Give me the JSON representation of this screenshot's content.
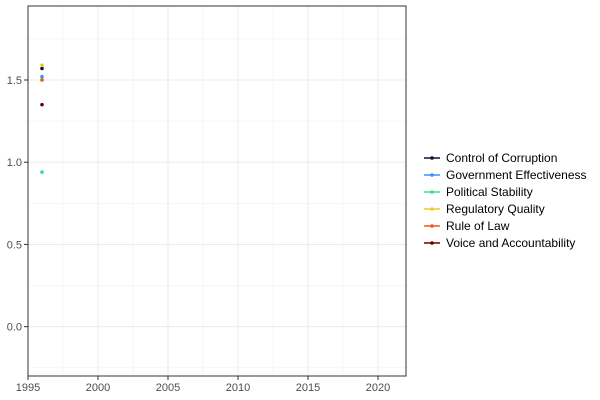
{
  "chart_data": {
    "type": "scatter",
    "title": "",
    "xlabel": "",
    "ylabel": "",
    "xlim": [
      1995,
      2022
    ],
    "ylim": [
      -0.3,
      1.95
    ],
    "x_ticks": [
      1995,
      2000,
      2005,
      2010,
      2015,
      2020
    ],
    "x_tick_labels": [
      "1995",
      "2000",
      "2005",
      "2010",
      "2015",
      "2020"
    ],
    "y_ticks": [
      0.0,
      0.5,
      1.0,
      1.5
    ],
    "y_tick_labels": [
      "0.0",
      "0.5",
      "1.0",
      "1.5"
    ],
    "grid": true,
    "legend_position": "right",
    "series": [
      {
        "name": "Control of Corruption",
        "color": "#1a0a2e",
        "points": [
          {
            "x": 1996,
            "y": 1.57
          }
        ]
      },
      {
        "name": "Government Effectiveness",
        "color": "#3b8fff",
        "points": [
          {
            "x": 1996,
            "y": 1.52
          }
        ]
      },
      {
        "name": "Political Stability",
        "color": "#33e38a",
        "points": [
          {
            "x": 1996,
            "y": 0.94
          }
        ]
      },
      {
        "name": "Regulatory Quality",
        "color": "#e3d21a",
        "points": [
          {
            "x": 1996,
            "y": 1.59
          }
        ]
      },
      {
        "name": "Rule of Law",
        "color": "#f05a14",
        "points": [
          {
            "x": 1996,
            "y": 1.5
          }
        ]
      },
      {
        "name": "Voice and Accountability",
        "color": "#6b0000",
        "points": [
          {
            "x": 1996,
            "y": 1.35
          }
        ]
      }
    ]
  }
}
